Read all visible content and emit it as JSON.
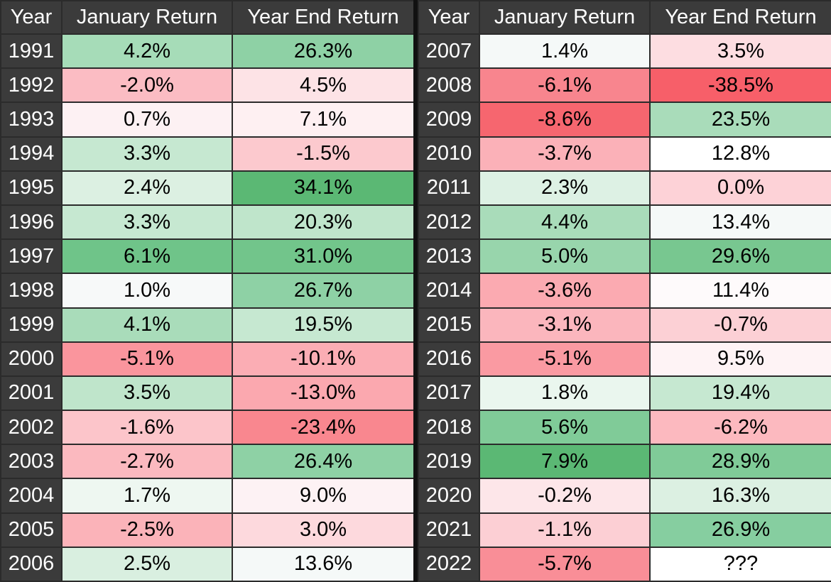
{
  "headers": {
    "year": "Year",
    "jan": "January Return",
    "ye": "Year End Return"
  },
  "left_rows": [
    {
      "year": "1991",
      "jan": "4.2%",
      "jan_bg": "#a6dcb8",
      "ye": "26.3%",
      "ye_bg": "#8ed1a5"
    },
    {
      "year": "1992",
      "jan": "-2.0%",
      "jan_bg": "#fbbcc3",
      "ye": "4.5%",
      "ye_bg": "#fde3e6"
    },
    {
      "year": "1993",
      "jan": "0.7%",
      "jan_bg": "#fdf1f3",
      "ye": "7.1%",
      "ye_bg": "#fef0f2"
    },
    {
      "year": "1994",
      "jan": "3.3%",
      "jan_bg": "#c6e8d1",
      "ye": "-1.5%",
      "ye_bg": "#fcc9ce"
    },
    {
      "year": "1995",
      "jan": "2.4%",
      "jan_bg": "#dcf0e2",
      "ye": "34.1%",
      "ye_bg": "#5bb874"
    },
    {
      "year": "1996",
      "jan": "3.3%",
      "jan_bg": "#c6e8d1",
      "ye": "20.3%",
      "ye_bg": "#bfe5cb"
    },
    {
      "year": "1997",
      "jan": "6.1%",
      "jan_bg": "#6fc489",
      "ye": "31.0%",
      "ye_bg": "#72c58b"
    },
    {
      "year": "1998",
      "jan": "1.0%",
      "jan_bg": "#f7f9f9",
      "ye": "26.7%",
      "ye_bg": "#8ed1a5"
    },
    {
      "year": "1999",
      "jan": "4.1%",
      "jan_bg": "#a9dcba",
      "ye": "19.5%",
      "ye_bg": "#c6e8d1"
    },
    {
      "year": "2000",
      "jan": "-5.1%",
      "jan_bg": "#fa959d",
      "ye": "-10.1%",
      "ye_bg": "#fbadb4"
    },
    {
      "year": "2001",
      "jan": "3.5%",
      "jan_bg": "#bfe5cb",
      "ye": "-13.0%",
      "ye_bg": "#fba8af"
    },
    {
      "year": "2002",
      "jan": "-1.6%",
      "jan_bg": "#fcc5ca",
      "ye": "-23.4%",
      "ye_bg": "#f9878f"
    },
    {
      "year": "2003",
      "jan": "-2.7%",
      "jan_bg": "#fbb9bf",
      "ye": "26.4%",
      "ye_bg": "#8ed1a5"
    },
    {
      "year": "2004",
      "jan": "1.7%",
      "jan_bg": "#eef7f1",
      "ye": "9.0%",
      "ye_bg": "#fdf2f4"
    },
    {
      "year": "2005",
      "jan": "-2.5%",
      "jan_bg": "#fbb3b9",
      "ye": "3.0%",
      "ye_bg": "#fdd9dd"
    },
    {
      "year": "2006",
      "jan": "2.5%",
      "jan_bg": "#d9efe0",
      "ye": "13.6%",
      "ye_bg": "#f5f9f8"
    }
  ],
  "right_rows": [
    {
      "year": "2007",
      "jan": "1.4%",
      "jan_bg": "#f5f9f8",
      "ye": "3.5%",
      "ye_bg": "#fddde1"
    },
    {
      "year": "2008",
      "jan": "-6.1%",
      "jan_bg": "#f8858e",
      "ye": "-38.5%",
      "ye_bg": "#f75f69"
    },
    {
      "year": "2009",
      "jan": "-8.6%",
      "jan_bg": "#f6666f",
      "ye": "23.5%",
      "ye_bg": "#a9dcba"
    },
    {
      "year": "2010",
      "jan": "-3.7%",
      "jan_bg": "#fbb1b8",
      "ye": "12.8%",
      "ye_bg": "#ffffff"
    },
    {
      "year": "2011",
      "jan": "2.3%",
      "jan_bg": "#ddf1e4",
      "ye": "0.0%",
      "ye_bg": "#fdd2d7"
    },
    {
      "year": "2012",
      "jan": "4.4%",
      "jan_bg": "#a9dcba",
      "ye": "13.4%",
      "ye_bg": "#f5f9f8"
    },
    {
      "year": "2013",
      "jan": "5.0%",
      "jan_bg": "#98d5ac",
      "ye": "29.6%",
      "ye_bg": "#78c790"
    },
    {
      "year": "2014",
      "jan": "-3.6%",
      "jan_bg": "#fbaab1",
      "ye": "11.4%",
      "ye_bg": "#fefafb"
    },
    {
      "year": "2015",
      "jan": "-3.1%",
      "jan_bg": "#fbb6bd",
      "ye": "-0.7%",
      "ye_bg": "#fcd0d5"
    },
    {
      "year": "2016",
      "jan": "-5.1%",
      "jan_bg": "#fa9aa2",
      "ye": "9.5%",
      "ye_bg": "#fef3f5"
    },
    {
      "year": "2017",
      "jan": "1.8%",
      "jan_bg": "#eaf6ee",
      "ye": "19.4%",
      "ye_bg": "#c6e8d1"
    },
    {
      "year": "2018",
      "jan": "5.6%",
      "jan_bg": "#80cb98",
      "ye": "-6.2%",
      "ye_bg": "#fcb9bf"
    },
    {
      "year": "2019",
      "jan": "7.9%",
      "jan_bg": "#5bb874",
      "ye": "28.9%",
      "ye_bg": "#80cb98"
    },
    {
      "year": "2020",
      "jan": "-0.2%",
      "jan_bg": "#fde6e9",
      "ye": "16.3%",
      "ye_bg": "#dcf0e2"
    },
    {
      "year": "2021",
      "jan": "-1.1%",
      "jan_bg": "#fccfd4",
      "ye": "26.9%",
      "ye_bg": "#86cea0"
    },
    {
      "year": "2022",
      "jan": "-5.7%",
      "jan_bg": "#f98e97",
      "ye": "???",
      "ye_bg": "#ffffff"
    }
  ]
}
